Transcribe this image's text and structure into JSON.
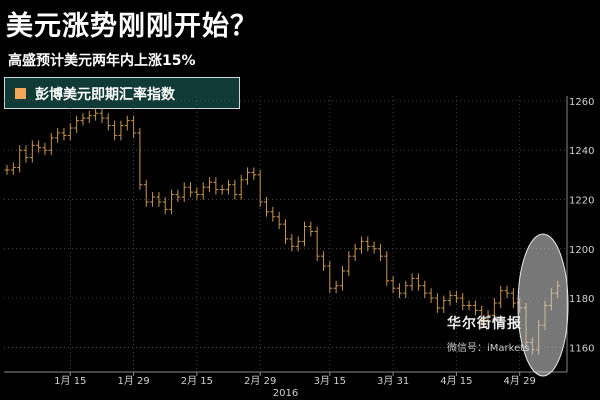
{
  "header": {
    "title": "美元涨势刚刚开始？",
    "subtitle": "高盛预计美元两年内上涨15%"
  },
  "legend": {
    "label": "彭博美元即期汇率指数",
    "swatch_color": "#f2a65a"
  },
  "watermark": {
    "brand": "华尔街情报",
    "wechat": "微信号：iMarkets"
  },
  "colors": {
    "background": "#000000",
    "bar": "#c8964f",
    "grid": "#5a5a5a",
    "highlight_ellipse": "#c8c8c8"
  },
  "chart_data": {
    "type": "ohlc",
    "title": "",
    "xlabel": "",
    "ylabel": "",
    "ylim": [
      1150,
      1262
    ],
    "y_ticks": [
      1160,
      1180,
      1200,
      1220,
      1240,
      1260
    ],
    "y_tick_labels": [
      "1160",
      "1180",
      "1200",
      "1220",
      "1240",
      "1260"
    ],
    "x_ticks": [
      {
        "day": 10,
        "label": "1月 15"
      },
      {
        "day": 20,
        "label": "1月 29"
      },
      {
        "day": 30,
        "label": "2月 15"
      },
      {
        "day": 40,
        "label": "2月 29"
      },
      {
        "day": 51,
        "label": "3月 15"
      },
      {
        "day": 61,
        "label": "3月 31"
      },
      {
        "day": 71,
        "label": "4月 15"
      },
      {
        "day": 81,
        "label": "4月 29"
      }
    ],
    "year_label": "2016",
    "grid": true,
    "series": [
      {
        "values": [
          1232,
          1233,
          1240,
          1237,
          1242,
          1241,
          1240,
          1245,
          1247,
          1246,
          1249,
          1252,
          1253,
          1254,
          1255,
          1253,
          1250,
          1246,
          1250,
          1252,
          1247,
          1226,
          1219,
          1221,
          1219,
          1216,
          1222,
          1221,
          1225,
          1223,
          1222,
          1225,
          1227,
          1224,
          1224,
          1226,
          1222,
          1228,
          1231,
          1230,
          1219,
          1215,
          1213,
          1210,
          1204,
          1201,
          1203,
          1209,
          1207,
          1197,
          1193,
          1184,
          1185,
          1191,
          1197,
          1200,
          1203,
          1201,
          1200,
          1197,
          1187,
          1184,
          1182,
          1185,
          1188,
          1185,
          1182,
          1180,
          1176,
          1179,
          1181,
          1180,
          1177,
          1177,
          1175,
          1171,
          1173,
          1178,
          1183,
          1182,
          1178,
          1176,
          1162,
          1159,
          1169,
          1177,
          1182,
          1185
        ]
      }
    ]
  }
}
